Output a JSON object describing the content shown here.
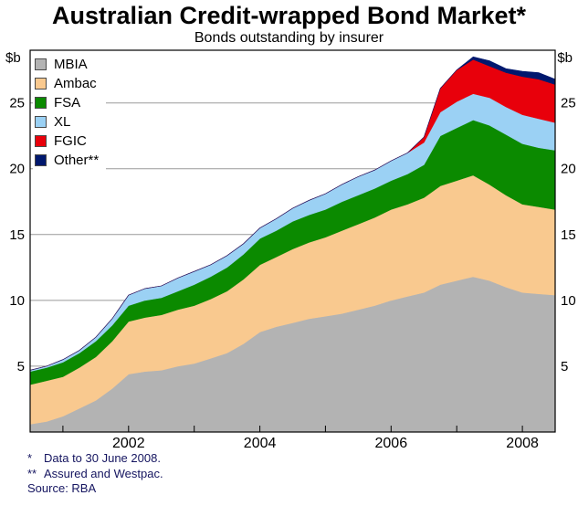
{
  "chart_data": {
    "type": "area",
    "stacked": true,
    "title": "Australian Credit-wrapped Bond Market*",
    "subtitle": "Bonds outstanding by insurer",
    "unit": "$b",
    "x_range": [
      2000.5,
      2008.5
    ],
    "y_range": [
      0,
      29
    ],
    "y_ticks": [
      5,
      10,
      15,
      20,
      25
    ],
    "x_tick_years": [
      2001,
      2002,
      2003,
      2004,
      2005,
      2006,
      2007,
      2008
    ],
    "x_label_years": [
      2002,
      2004,
      2006,
      2008
    ],
    "grid": true,
    "legend_position": "top-left",
    "x": [
      2000.5,
      2000.75,
      2001.0,
      2001.25,
      2001.5,
      2001.75,
      2002.0,
      2002.25,
      2002.5,
      2002.75,
      2003.0,
      2003.25,
      2003.5,
      2003.75,
      2004.0,
      2004.25,
      2004.5,
      2004.75,
      2005.0,
      2005.25,
      2005.5,
      2005.75,
      2006.0,
      2006.25,
      2006.5,
      2006.75,
      2007.0,
      2007.25,
      2007.5,
      2007.75,
      2008.0,
      2008.25,
      2008.5
    ],
    "series": [
      {
        "name": "MBIA",
        "color": "#b3b3b3",
        "values": [
          0.6,
          0.8,
          1.2,
          1.8,
          2.4,
          3.3,
          4.4,
          4.6,
          4.7,
          5.0,
          5.2,
          5.6,
          6.0,
          6.7,
          7.6,
          8.0,
          8.3,
          8.6,
          8.8,
          9.0,
          9.3,
          9.6,
          10.0,
          10.3,
          10.6,
          11.2,
          11.5,
          11.8,
          11.5,
          11.0,
          10.6,
          10.5,
          10.4
        ]
      },
      {
        "name": "Ambac",
        "color": "#f9c98f",
        "values": [
          3.0,
          3.1,
          3.0,
          3.1,
          3.3,
          3.6,
          4.0,
          4.1,
          4.2,
          4.3,
          4.4,
          4.5,
          4.7,
          4.9,
          5.1,
          5.3,
          5.6,
          5.8,
          6.0,
          6.3,
          6.5,
          6.7,
          6.9,
          7.0,
          7.2,
          7.5,
          7.6,
          7.7,
          7.3,
          7.0,
          6.7,
          6.6,
          6.5
        ]
      },
      {
        "name": "FSA",
        "color": "#0b8a00",
        "values": [
          1.0,
          1.0,
          1.1,
          1.1,
          1.2,
          1.2,
          1.2,
          1.3,
          1.3,
          1.4,
          1.6,
          1.7,
          1.8,
          1.9,
          2.0,
          2.0,
          2.1,
          2.1,
          2.1,
          2.2,
          2.2,
          2.2,
          2.2,
          2.3,
          2.5,
          3.8,
          4.0,
          4.2,
          4.5,
          4.6,
          4.6,
          4.5,
          4.5
        ]
      },
      {
        "name": "XL",
        "color": "#9bd1f4",
        "values": [
          0.1,
          0.1,
          0.2,
          0.2,
          0.3,
          0.5,
          0.8,
          0.9,
          0.9,
          1.0,
          1.0,
          0.9,
          0.9,
          0.8,
          0.8,
          0.9,
          1.0,
          1.1,
          1.2,
          1.3,
          1.4,
          1.4,
          1.5,
          1.6,
          1.7,
          1.8,
          2.0,
          2.0,
          2.1,
          2.1,
          2.2,
          2.2,
          2.1
        ]
      },
      {
        "name": "FGIC",
        "color": "#e8000b",
        "values": [
          0,
          0,
          0,
          0,
          0,
          0,
          0,
          0,
          0,
          0,
          0,
          0,
          0,
          0,
          0,
          0,
          0,
          0,
          0,
          0,
          0,
          0,
          0,
          0,
          0.4,
          1.8,
          2.4,
          2.6,
          2.4,
          2.6,
          2.9,
          3.0,
          2.9
        ]
      },
      {
        "name": "Other**",
        "color": "#00186e",
        "values": [
          0,
          0,
          0,
          0,
          0,
          0,
          0,
          0,
          0,
          0,
          0,
          0,
          0,
          0,
          0,
          0,
          0,
          0,
          0,
          0,
          0,
          0,
          0,
          0,
          0,
          0,
          0,
          0.2,
          0.4,
          0.3,
          0.4,
          0.5,
          0.4
        ]
      }
    ],
    "footnotes": [
      {
        "marker": "*",
        "text": "Data to 30 June 2008."
      },
      {
        "marker": "**",
        "text": "Assured and Westpac."
      }
    ],
    "source": "Source: RBA"
  }
}
